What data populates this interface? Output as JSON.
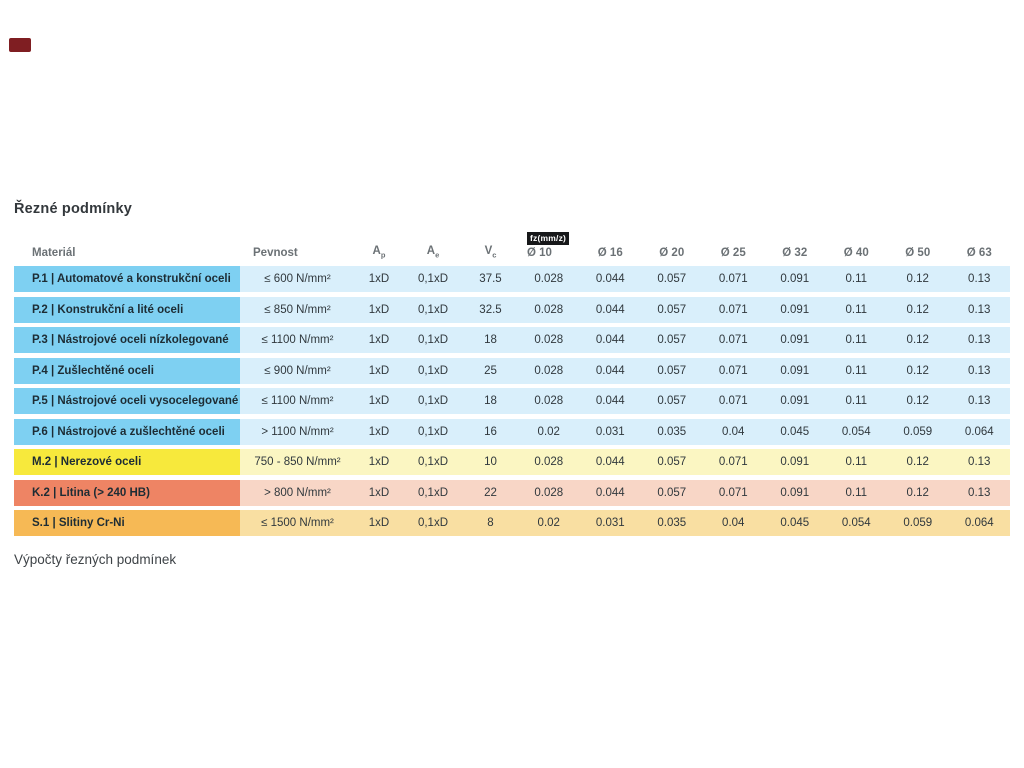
{
  "brand_mark_color": "#7f1e22",
  "title": "Řezné podmínky",
  "footer_text": "Výpočty řezných podmínek",
  "table": {
    "headers": {
      "material": "Materiál",
      "pevnost": "Pevnost",
      "ap": {
        "base": "A",
        "sub": "p"
      },
      "ae": {
        "base": "A",
        "sub": "e"
      },
      "vc": {
        "base": "V",
        "sub": "c"
      },
      "fz_tag": "fz(mm/z)",
      "diameters": [
        "Ø 10",
        "Ø 16",
        "Ø 20",
        "Ø 25",
        "Ø 32",
        "Ø 40",
        "Ø 50",
        "Ø 63"
      ]
    },
    "themes": {
      "blue": {
        "label": "#7ed0f2",
        "row": "#d9effb"
      },
      "yellow": {
        "label": "#f7e93c",
        "row": "#fbf6c2"
      },
      "red": {
        "label": "#ee8464",
        "row": "#f8d6c6"
      },
      "orange": {
        "label": "#f6b955",
        "row": "#f9dfa2"
      }
    },
    "rows": [
      {
        "theme": "blue",
        "material": "P.1 | Automatové a konstrukční oceli",
        "pevnost": "≤ 600 N/mm²",
        "ap": "1xD",
        "ae": "0,1xD",
        "vc": "37.5",
        "fz": [
          "0.028",
          "0.044",
          "0.057",
          "0.071",
          "0.091",
          "0.11",
          "0.12",
          "0.13"
        ]
      },
      {
        "theme": "blue",
        "material": "P.2 | Konstrukční a lité oceli",
        "pevnost": "≤ 850 N/mm²",
        "ap": "1xD",
        "ae": "0,1xD",
        "vc": "32.5",
        "fz": [
          "0.028",
          "0.044",
          "0.057",
          "0.071",
          "0.091",
          "0.11",
          "0.12",
          "0.13"
        ]
      },
      {
        "theme": "blue",
        "material": "P.3 | Nástrojové oceli nízkolegované",
        "pevnost": "≤ 1100 N/mm²",
        "ap": "1xD",
        "ae": "0,1xD",
        "vc": "18",
        "fz": [
          "0.028",
          "0.044",
          "0.057",
          "0.071",
          "0.091",
          "0.11",
          "0.12",
          "0.13"
        ]
      },
      {
        "theme": "blue",
        "material": "P.4 | Zušlechtěné oceli",
        "pevnost": "≤ 900 N/mm²",
        "ap": "1xD",
        "ae": "0,1xD",
        "vc": "25",
        "fz": [
          "0.028",
          "0.044",
          "0.057",
          "0.071",
          "0.091",
          "0.11",
          "0.12",
          "0.13"
        ]
      },
      {
        "theme": "blue",
        "material": "P.5 | Nástrojové oceli vysocelegované",
        "pevnost": "≤ 1100 N/mm²",
        "ap": "1xD",
        "ae": "0,1xD",
        "vc": "18",
        "fz": [
          "0.028",
          "0.044",
          "0.057",
          "0.071",
          "0.091",
          "0.11",
          "0.12",
          "0.13"
        ]
      },
      {
        "theme": "blue",
        "material": "P.6 | Nástrojové a zušlechtěné oceli",
        "pevnost": "> 1100 N/mm²",
        "ap": "1xD",
        "ae": "0,1xD",
        "vc": "16",
        "fz": [
          "0.02",
          "0.031",
          "0.035",
          "0.04",
          "0.045",
          "0.054",
          "0.059",
          "0.064"
        ]
      },
      {
        "theme": "yellow",
        "material": "M.2 | Nerezové oceli",
        "pevnost": "750 - 850 N/mm²",
        "ap": "1xD",
        "ae": "0,1xD",
        "vc": "10",
        "fz": [
          "0.028",
          "0.044",
          "0.057",
          "0.071",
          "0.091",
          "0.11",
          "0.12",
          "0.13"
        ]
      },
      {
        "theme": "red",
        "material": "K.2 | Litina (> 240 HB)",
        "pevnost": "> 800 N/mm²",
        "ap": "1xD",
        "ae": "0,1xD",
        "vc": "22",
        "fz": [
          "0.028",
          "0.044",
          "0.057",
          "0.071",
          "0.091",
          "0.11",
          "0.12",
          "0.13"
        ]
      },
      {
        "theme": "orange",
        "material": "S.1 | Slitiny Cr-Ni",
        "pevnost": "≤ 1500 N/mm²",
        "ap": "1xD",
        "ae": "0,1xD",
        "vc": "8",
        "fz": [
          "0.02",
          "0.031",
          "0.035",
          "0.04",
          "0.045",
          "0.054",
          "0.059",
          "0.064"
        ]
      }
    ]
  }
}
